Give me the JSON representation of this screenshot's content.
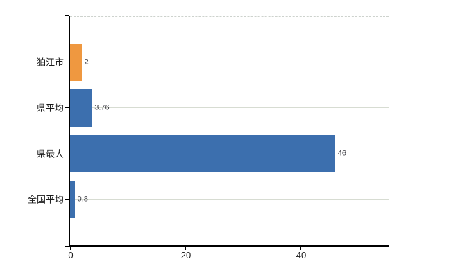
{
  "chart_data": {
    "type": "bar",
    "orientation": "horizontal",
    "title": "",
    "xlabel": "",
    "ylabel": "",
    "categories": [
      "狛江市",
      "県平均",
      "県最大",
      "全国平均"
    ],
    "values": [
      2,
      3.76,
      46,
      0.8
    ],
    "value_labels": [
      "2",
      "3.76",
      "46",
      "0.8"
    ],
    "series": [
      {
        "name": "value",
        "values": [
          2,
          3.76,
          46,
          0.8
        ]
      }
    ],
    "bar_colors": [
      "#EF9840",
      "#3C6FAE",
      "#3C6FAE",
      "#3C6FAE"
    ],
    "xlim": [
      0,
      55.3
    ],
    "x_ticks": [
      0,
      20,
      40
    ],
    "x_tick_labels": [
      "0",
      "20",
      "40"
    ],
    "grid": true,
    "legend_position": "none"
  },
  "colors": {
    "accent_orange": "#EF9840",
    "accent_blue": "#3C6FAE",
    "axis": "#000000",
    "grid_horizontal": "#d7dcd2",
    "grid_vertical": "#d6d4e0",
    "top_border": "#cdd2cd",
    "value_label_text": "#3d3d44",
    "tick_label_text": "#1a1a1a",
    "background": "#ffffff"
  }
}
